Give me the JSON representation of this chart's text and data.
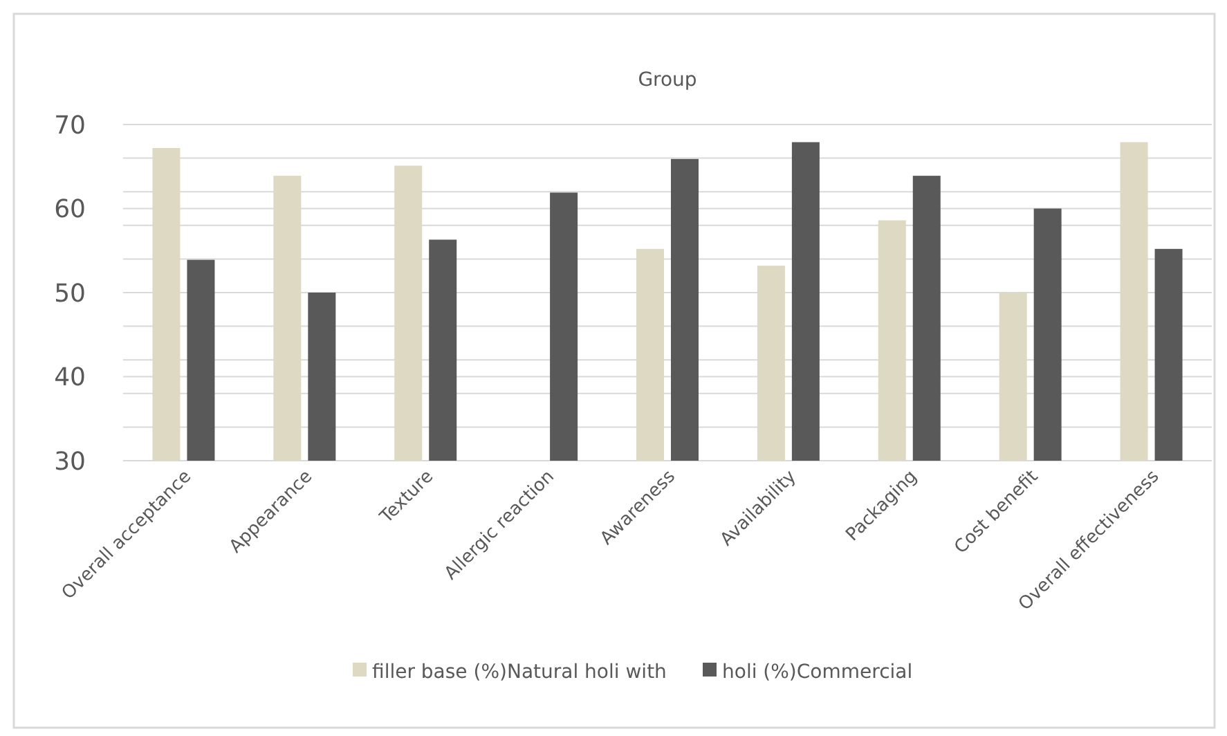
{
  "chart_data": {
    "type": "bar",
    "title": "Group",
    "categories": [
      "Overall acceptance",
      "Appearance",
      "Texture",
      "Allergic reaction",
      "Awareness",
      "Availability",
      "Packaging",
      "Cost benefit",
      "Overall effectiveness"
    ],
    "series": [
      {
        "name": "filler base (%)Natural holi with",
        "color": "#ddd9c3",
        "values": [
          67.2,
          63.9,
          65.1,
          null,
          55.2,
          53.2,
          58.6,
          50.0,
          67.9
        ]
      },
      {
        "name": "holi (%)Commercial",
        "color": "#595959",
        "values": [
          53.9,
          50.0,
          56.3,
          61.9,
          65.9,
          67.9,
          63.9,
          60.0,
          55.2
        ]
      }
    ],
    "ylim": [
      30,
      70
    ],
    "yticks": [
      30,
      {
        "value": 34,
        "label": null
      },
      {
        "value": 38,
        "label": null
      },
      40,
      {
        "value": 42,
        "label": null
      },
      {
        "value": 46,
        "label": null
      },
      50,
      {
        "value": 54,
        "label": null
      },
      {
        "value": 58,
        "label": null
      },
      60,
      {
        "value": 62,
        "label": null
      },
      {
        "value": 66,
        "label": null
      },
      70
    ],
    "grid": "y",
    "legend": "bottom"
  }
}
